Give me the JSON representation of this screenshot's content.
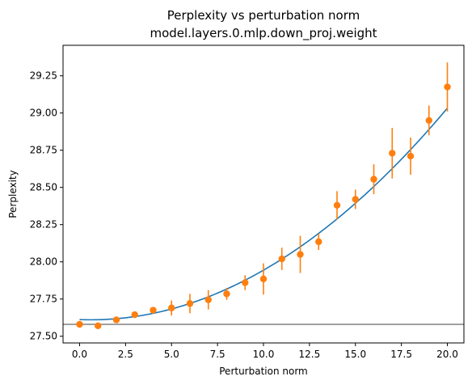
{
  "chart_data": {
    "type": "scatter",
    "title": "Perplexity vs perturbation norm",
    "subtitle": "model.layers.0.mlp.down_proj.weight",
    "xlabel": "Perturbation norm",
    "ylabel": "Perplexity",
    "xlim": [
      -0.9,
      20.9
    ],
    "ylim": [
      27.455,
      29.455
    ],
    "x_ticks": [
      "0.0",
      "2.5",
      "5.0",
      "7.5",
      "10.0",
      "12.5",
      "15.0",
      "17.5",
      "20.0"
    ],
    "x_tick_values": [
      0,
      2.5,
      5,
      7.5,
      10,
      12.5,
      15,
      17.5,
      20
    ],
    "y_ticks": [
      "27.50",
      "27.75",
      "28.00",
      "28.25",
      "28.50",
      "28.75",
      "29.00",
      "29.25"
    ],
    "y_tick_values": [
      27.5,
      27.75,
      28.0,
      28.25,
      28.5,
      28.75,
      29.0,
      29.25
    ],
    "grid": false,
    "points": {
      "color": "#ff7f0e",
      "x": [
        0,
        1,
        2,
        3,
        4,
        5,
        6,
        7,
        8,
        9,
        10,
        11,
        12,
        13,
        14,
        15,
        16,
        17,
        18,
        19,
        20
      ],
      "y": [
        27.58,
        27.57,
        27.61,
        27.645,
        27.675,
        27.69,
        27.72,
        27.745,
        27.785,
        27.86,
        27.885,
        28.02,
        28.05,
        28.135,
        28.38,
        28.42,
        28.555,
        28.73,
        28.71,
        28.95,
        29.175
      ],
      "yerr": [
        0.0,
        0.0,
        0.012,
        0.01,
        0.01,
        0.05,
        0.065,
        0.065,
        0.04,
        0.05,
        0.105,
        0.075,
        0.125,
        0.055,
        0.095,
        0.065,
        0.1,
        0.17,
        0.125,
        0.1,
        0.165
      ]
    },
    "fit_curve": {
      "color": "#1f77b4",
      "type": "quadratic",
      "coefficients": {
        "a": 0.003784,
        "b": -0.00465,
        "c": 27.612
      }
    },
    "baseline": {
      "color": "#808080",
      "y": 27.58
    }
  }
}
